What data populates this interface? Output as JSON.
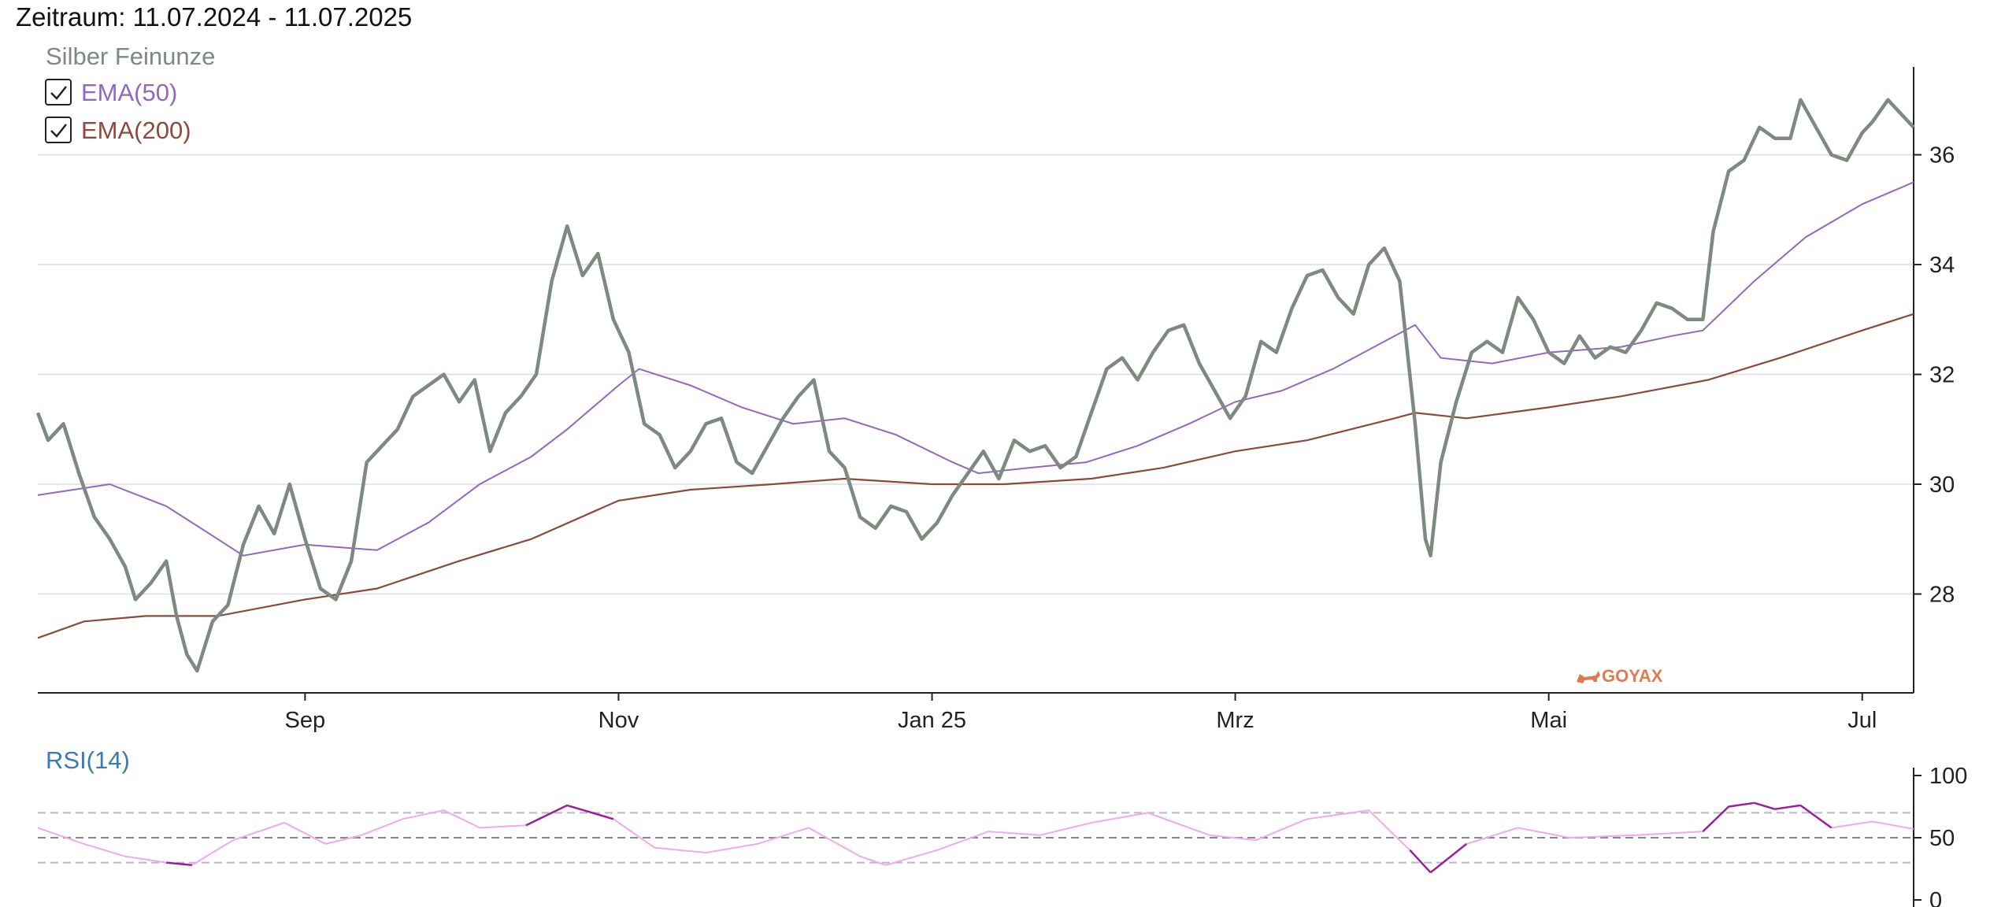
{
  "header": {
    "title": "Zeitraum: 11.07.2024 - 11.07.2025"
  },
  "legend": {
    "series_label": "Silber Feinunze",
    "ema50_label": "EMA(50)",
    "ema200_label": "EMA(200)",
    "ema50_checked": true,
    "ema200_checked": true
  },
  "watermark": {
    "text": "GOYAX"
  },
  "colors": {
    "price": "#7c8a80",
    "ema50": "#9467bd",
    "ema200": "#8c4a3a",
    "rsi": "#f0a8f0",
    "rsi_extreme": "#9b1f9b",
    "rsi_label": "#3a7ab5",
    "grid": "#dddddd"
  },
  "chart_data": [
    {
      "type": "line",
      "title": "",
      "x_range": [
        "2024-07-11",
        "2025-07-11"
      ],
      "ylim": [
        26.2,
        37.6
      ],
      "yticks": [
        28,
        30,
        32,
        34,
        36
      ],
      "xtick_labels": [
        {
          "date": "2024-09-01",
          "label": "Sep"
        },
        {
          "date": "2024-11-01",
          "label": "Nov"
        },
        {
          "date": "2025-01-01",
          "label": "Jan 25"
        },
        {
          "date": "2025-03-01",
          "label": "Mrz"
        },
        {
          "date": "2025-05-01",
          "label": "Mai"
        },
        {
          "date": "2025-07-01",
          "label": "Jul"
        }
      ],
      "grid": true,
      "legend_position": "top-left",
      "series": [
        {
          "name": "Silber Feinunze",
          "points": [
            [
              "2024-07-11",
              31.3
            ],
            [
              "2024-07-13",
              30.8
            ],
            [
              "2024-07-16",
              31.1
            ],
            [
              "2024-07-19",
              30.2
            ],
            [
              "2024-07-22",
              29.4
            ],
            [
              "2024-07-25",
              29.0
            ],
            [
              "2024-07-28",
              28.5
            ],
            [
              "2024-07-30",
              27.9
            ],
            [
              "2024-08-02",
              28.2
            ],
            [
              "2024-08-05",
              28.6
            ],
            [
              "2024-08-07",
              27.6
            ],
            [
              "2024-08-09",
              26.9
            ],
            [
              "2024-08-11",
              26.6
            ],
            [
              "2024-08-14",
              27.5
            ],
            [
              "2024-08-17",
              27.8
            ],
            [
              "2024-08-20",
              28.9
            ],
            [
              "2024-08-23",
              29.6
            ],
            [
              "2024-08-26",
              29.1
            ],
            [
              "2024-08-29",
              30.0
            ],
            [
              "2024-09-01",
              29.0
            ],
            [
              "2024-09-04",
              28.1
            ],
            [
              "2024-09-07",
              27.9
            ],
            [
              "2024-09-10",
              28.6
            ],
            [
              "2024-09-13",
              30.4
            ],
            [
              "2024-09-16",
              30.7
            ],
            [
              "2024-09-19",
              31.0
            ],
            [
              "2024-09-22",
              31.6
            ],
            [
              "2024-09-25",
              31.8
            ],
            [
              "2024-09-28",
              32.0
            ],
            [
              "2024-10-01",
              31.5
            ],
            [
              "2024-10-04",
              31.9
            ],
            [
              "2024-10-07",
              30.6
            ],
            [
              "2024-10-10",
              31.3
            ],
            [
              "2024-10-13",
              31.6
            ],
            [
              "2024-10-16",
              32.0
            ],
            [
              "2024-10-19",
              33.7
            ],
            [
              "2024-10-22",
              34.7
            ],
            [
              "2024-10-25",
              33.8
            ],
            [
              "2024-10-28",
              34.2
            ],
            [
              "2024-10-31",
              33.0
            ],
            [
              "2024-11-03",
              32.4
            ],
            [
              "2024-11-06",
              31.1
            ],
            [
              "2024-11-09",
              30.9
            ],
            [
              "2024-11-12",
              30.3
            ],
            [
              "2024-11-15",
              30.6
            ],
            [
              "2024-11-18",
              31.1
            ],
            [
              "2024-11-21",
              31.2
            ],
            [
              "2024-11-24",
              30.4
            ],
            [
              "2024-11-27",
              30.2
            ],
            [
              "2024-11-30",
              30.7
            ],
            [
              "2024-12-03",
              31.2
            ],
            [
              "2024-12-06",
              31.6
            ],
            [
              "2024-12-09",
              31.9
            ],
            [
              "2024-12-12",
              30.6
            ],
            [
              "2024-12-15",
              30.3
            ],
            [
              "2024-12-18",
              29.4
            ],
            [
              "2024-12-21",
              29.2
            ],
            [
              "2024-12-24",
              29.6
            ],
            [
              "2024-12-27",
              29.5
            ],
            [
              "2024-12-30",
              29.0
            ],
            [
              "2025-01-02",
              29.3
            ],
            [
              "2025-01-05",
              29.8
            ],
            [
              "2025-01-08",
              30.2
            ],
            [
              "2025-01-11",
              30.6
            ],
            [
              "2025-01-14",
              30.1
            ],
            [
              "2025-01-17",
              30.8
            ],
            [
              "2025-01-20",
              30.6
            ],
            [
              "2025-01-23",
              30.7
            ],
            [
              "2025-01-26",
              30.3
            ],
            [
              "2025-01-29",
              30.5
            ],
            [
              "2025-02-01",
              31.3
            ],
            [
              "2025-02-04",
              32.1
            ],
            [
              "2025-02-07",
              32.3
            ],
            [
              "2025-02-10",
              31.9
            ],
            [
              "2025-02-13",
              32.4
            ],
            [
              "2025-02-16",
              32.8
            ],
            [
              "2025-02-19",
              32.9
            ],
            [
              "2025-02-22",
              32.2
            ],
            [
              "2025-02-25",
              31.7
            ],
            [
              "2025-02-28",
              31.2
            ],
            [
              "2025-03-03",
              31.6
            ],
            [
              "2025-03-06",
              32.6
            ],
            [
              "2025-03-09",
              32.4
            ],
            [
              "2025-03-12",
              33.2
            ],
            [
              "2025-03-15",
              33.8
            ],
            [
              "2025-03-18",
              33.9
            ],
            [
              "2025-03-21",
              33.4
            ],
            [
              "2025-03-24",
              33.1
            ],
            [
              "2025-03-27",
              34.0
            ],
            [
              "2025-03-30",
              34.3
            ],
            [
              "2025-04-02",
              33.7
            ],
            [
              "2025-04-05",
              31.1
            ],
            [
              "2025-04-07",
              29.0
            ],
            [
              "2025-04-08",
              28.7
            ],
            [
              "2025-04-10",
              30.4
            ],
            [
              "2025-04-13",
              31.5
            ],
            [
              "2025-04-16",
              32.4
            ],
            [
              "2025-04-19",
              32.6
            ],
            [
              "2025-04-22",
              32.4
            ],
            [
              "2025-04-25",
              33.4
            ],
            [
              "2025-04-28",
              33.0
            ],
            [
              "2025-05-01",
              32.4
            ],
            [
              "2025-05-04",
              32.2
            ],
            [
              "2025-05-07",
              32.7
            ],
            [
              "2025-05-10",
              32.3
            ],
            [
              "2025-05-13",
              32.5
            ],
            [
              "2025-05-16",
              32.4
            ],
            [
              "2025-05-19",
              32.8
            ],
            [
              "2025-05-22",
              33.3
            ],
            [
              "2025-05-25",
              33.2
            ],
            [
              "2025-05-28",
              33.0
            ],
            [
              "2025-05-31",
              33.0
            ],
            [
              "2025-06-02",
              34.6
            ],
            [
              "2025-06-05",
              35.7
            ],
            [
              "2025-06-08",
              35.9
            ],
            [
              "2025-06-11",
              36.5
            ],
            [
              "2025-06-14",
              36.3
            ],
            [
              "2025-06-17",
              36.3
            ],
            [
              "2025-06-19",
              37.0
            ],
            [
              "2025-06-22",
              36.5
            ],
            [
              "2025-06-25",
              36.0
            ],
            [
              "2025-06-28",
              35.9
            ],
            [
              "2025-07-01",
              36.4
            ],
            [
              "2025-07-03",
              36.6
            ],
            [
              "2025-07-06",
              37.0
            ],
            [
              "2025-07-08",
              36.8
            ],
            [
              "2025-07-11",
              36.5
            ]
          ]
        },
        {
          "name": "EMA(50)",
          "points": [
            [
              "2024-07-11",
              29.8
            ],
            [
              "2024-07-25",
              30.0
            ],
            [
              "2024-08-05",
              29.6
            ],
            [
              "2024-08-15",
              29.0
            ],
            [
              "2024-08-20",
              28.7
            ],
            [
              "2024-09-01",
              28.9
            ],
            [
              "2024-09-15",
              28.8
            ],
            [
              "2024-09-25",
              29.3
            ],
            [
              "2024-10-05",
              30.0
            ],
            [
              "2024-10-15",
              30.5
            ],
            [
              "2024-10-22",
              31.0
            ],
            [
              "2024-11-01",
              31.8
            ],
            [
              "2024-11-05",
              32.1
            ],
            [
              "2024-11-15",
              31.8
            ],
            [
              "2024-11-25",
              31.4
            ],
            [
              "2024-12-05",
              31.1
            ],
            [
              "2024-12-15",
              31.2
            ],
            [
              "2024-12-25",
              30.9
            ],
            [
              "2025-01-05",
              30.4
            ],
            [
              "2025-01-10",
              30.2
            ],
            [
              "2025-01-20",
              30.3
            ],
            [
              "2025-01-31",
              30.4
            ],
            [
              "2025-02-10",
              30.7
            ],
            [
              "2025-02-20",
              31.1
            ],
            [
              "2025-03-01",
              31.5
            ],
            [
              "2025-03-10",
              31.7
            ],
            [
              "2025-03-20",
              32.1
            ],
            [
              "2025-03-30",
              32.6
            ],
            [
              "2025-04-05",
              32.9
            ],
            [
              "2025-04-10",
              32.3
            ],
            [
              "2025-04-20",
              32.2
            ],
            [
              "2025-05-01",
              32.4
            ],
            [
              "2025-05-15",
              32.5
            ],
            [
              "2025-05-25",
              32.7
            ],
            [
              "2025-05-31",
              32.8
            ],
            [
              "2025-06-10",
              33.7
            ],
            [
              "2025-06-20",
              34.5
            ],
            [
              "2025-07-01",
              35.1
            ],
            [
              "2025-07-11",
              35.5
            ]
          ]
        },
        {
          "name": "EMA(200)",
          "points": [
            [
              "2024-07-11",
              27.2
            ],
            [
              "2024-07-20",
              27.5
            ],
            [
              "2024-08-01",
              27.6
            ],
            [
              "2024-08-15",
              27.6
            ],
            [
              "2024-09-01",
              27.9
            ],
            [
              "2024-09-15",
              28.1
            ],
            [
              "2024-10-01",
              28.6
            ],
            [
              "2024-10-15",
              29.0
            ],
            [
              "2024-11-01",
              29.7
            ],
            [
              "2024-11-15",
              29.9
            ],
            [
              "2024-12-01",
              30.0
            ],
            [
              "2024-12-15",
              30.1
            ],
            [
              "2025-01-01",
              30.0
            ],
            [
              "2025-01-15",
              30.0
            ],
            [
              "2025-02-01",
              30.1
            ],
            [
              "2025-02-15",
              30.3
            ],
            [
              "2025-03-01",
              30.6
            ],
            [
              "2025-03-15",
              30.8
            ],
            [
              "2025-04-01",
              31.2
            ],
            [
              "2025-04-05",
              31.3
            ],
            [
              "2025-04-15",
              31.2
            ],
            [
              "2025-05-01",
              31.4
            ],
            [
              "2025-05-15",
              31.6
            ],
            [
              "2025-06-01",
              31.9
            ],
            [
              "2025-06-15",
              32.3
            ],
            [
              "2025-07-01",
              32.8
            ],
            [
              "2025-07-11",
              33.1
            ]
          ]
        }
      ]
    },
    {
      "type": "line",
      "title": "RSI(14)",
      "ylim": [
        0,
        100
      ],
      "yticks": [
        0,
        50,
        100
      ],
      "reference_lines": [
        30,
        50,
        70
      ],
      "series": [
        {
          "name": "RSI(14)",
          "points": [
            [
              "2024-07-11",
              58
            ],
            [
              "2024-07-20",
              45
            ],
            [
              "2024-07-28",
              35
            ],
            [
              "2024-08-05",
              30
            ],
            [
              "2024-08-10",
              28
            ],
            [
              "2024-08-18",
              48
            ],
            [
              "2024-08-28",
              62
            ],
            [
              "2024-09-05",
              45
            ],
            [
              "2024-09-12",
              52
            ],
            [
              "2024-09-20",
              65
            ],
            [
              "2024-09-28",
              72
            ],
            [
              "2024-10-05",
              58
            ],
            [
              "2024-10-14",
              60
            ],
            [
              "2024-10-22",
              76
            ],
            [
              "2024-10-31",
              65
            ],
            [
              "2024-11-08",
              42
            ],
            [
              "2024-11-18",
              38
            ],
            [
              "2024-11-28",
              45
            ],
            [
              "2024-12-08",
              58
            ],
            [
              "2024-12-18",
              35
            ],
            [
              "2024-12-23",
              28
            ],
            [
              "2025-01-02",
              40
            ],
            [
              "2025-01-12",
              55
            ],
            [
              "2025-01-22",
              52
            ],
            [
              "2025-02-01",
              62
            ],
            [
              "2025-02-12",
              70
            ],
            [
              "2025-02-24",
              52
            ],
            [
              "2025-03-05",
              48
            ],
            [
              "2025-03-15",
              65
            ],
            [
              "2025-03-27",
              72
            ],
            [
              "2025-04-04",
              40
            ],
            [
              "2025-04-08",
              22
            ],
            [
              "2025-04-15",
              45
            ],
            [
              "2025-04-25",
              58
            ],
            [
              "2025-05-05",
              50
            ],
            [
              "2025-05-18",
              52
            ],
            [
              "2025-05-31",
              55
            ],
            [
              "2025-06-05",
              75
            ],
            [
              "2025-06-10",
              78
            ],
            [
              "2025-06-14",
              73
            ],
            [
              "2025-06-19",
              76
            ],
            [
              "2025-06-25",
              58
            ],
            [
              "2025-07-03",
              63
            ],
            [
              "2025-07-11",
              57
            ]
          ]
        }
      ]
    }
  ]
}
